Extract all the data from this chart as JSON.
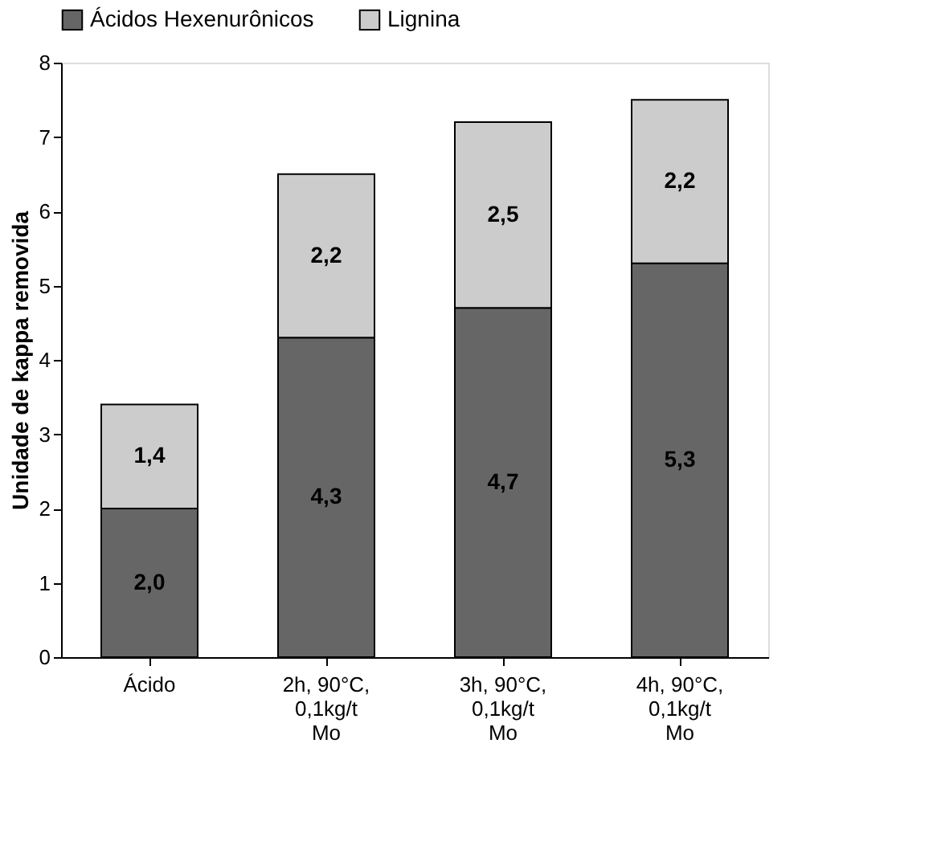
{
  "chart_data": {
    "type": "bar",
    "stacked": true,
    "ylabel": "Unidade de kappa removida",
    "categories": [
      "Ácido",
      "2h, 90°C,\n0,1kg/t\nMo",
      "3h, 90°C,\n0,1kg/t\nMo",
      "4h, 90°C,\n0,1kg/t\nMo"
    ],
    "series": [
      {
        "name": "Ácidos Hexenurônicos",
        "color": "#666666",
        "values": [
          2.0,
          4.3,
          4.7,
          5.3
        ],
        "value_labels": [
          "2,0",
          "4,3",
          "4,7",
          "5,3"
        ]
      },
      {
        "name": "Lignina",
        "color": "#cccccc",
        "values": [
          1.4,
          2.2,
          2.5,
          2.2
        ],
        "value_labels": [
          "1,4",
          "2,2",
          "2,5",
          "2,2"
        ]
      }
    ],
    "ylim": [
      0,
      8
    ],
    "yticks": [
      0,
      1,
      2,
      3,
      4,
      5,
      6,
      7,
      8
    ],
    "grid": false,
    "legend": "top"
  }
}
